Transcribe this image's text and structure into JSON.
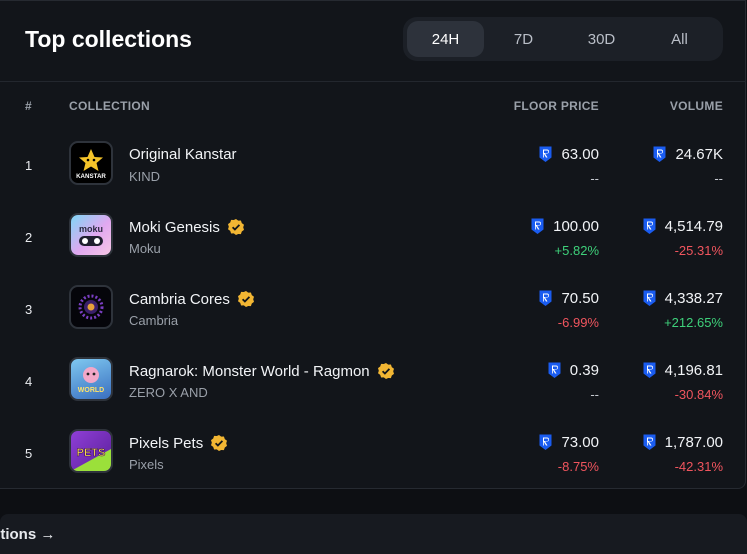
{
  "header": {
    "title": "Top collections",
    "tabs": [
      {
        "label": "24H",
        "active": true
      },
      {
        "label": "7D",
        "active": false
      },
      {
        "label": "30D",
        "active": false
      },
      {
        "label": "All",
        "active": false
      }
    ]
  },
  "columns": {
    "rank": "#",
    "collection": "COLLECTION",
    "floor_price": "FLOOR PRICE",
    "volume": "VOLUME"
  },
  "currency_icon": "ron-token-icon",
  "colors": {
    "accent": "#1a5cf0",
    "positive": "#3ed07a",
    "negative": "#f0555e",
    "verified": "#f2b633"
  },
  "rows": [
    {
      "rank": "1",
      "name": "Original Kanstar",
      "creator": "KIND",
      "verified": false,
      "floor": "63.00",
      "floor_change": "--",
      "volume": "24.67K",
      "volume_change": "--",
      "thumb_text": "KANSTAR"
    },
    {
      "rank": "2",
      "name": "Moki Genesis",
      "creator": "Moku",
      "verified": true,
      "floor": "100.00",
      "floor_change": "+5.82%",
      "volume": "4,514.79",
      "volume_change": "-25.31%",
      "thumb_text": "moku"
    },
    {
      "rank": "3",
      "name": "Cambria Cores",
      "creator": "Cambria",
      "verified": true,
      "floor": "70.50",
      "floor_change": "-6.99%",
      "volume": "4,338.27",
      "volume_change": "+212.65%",
      "thumb_text": ""
    },
    {
      "rank": "4",
      "name": "Ragnarok: Monster World - Ragmon",
      "creator": "ZERO X AND",
      "verified": true,
      "floor": "0.39",
      "floor_change": "--",
      "volume": "4,196.81",
      "volume_change": "-30.84%",
      "thumb_text": "WORLD"
    },
    {
      "rank": "5",
      "name": "Pixels Pets",
      "creator": "Pixels",
      "verified": true,
      "floor": "73.00",
      "floor_change": "-8.75%",
      "volume": "1,787.00",
      "volume_change": "-42.31%",
      "thumb_text": "PETS"
    }
  ],
  "footer": {
    "partial_label": "ctions →"
  }
}
